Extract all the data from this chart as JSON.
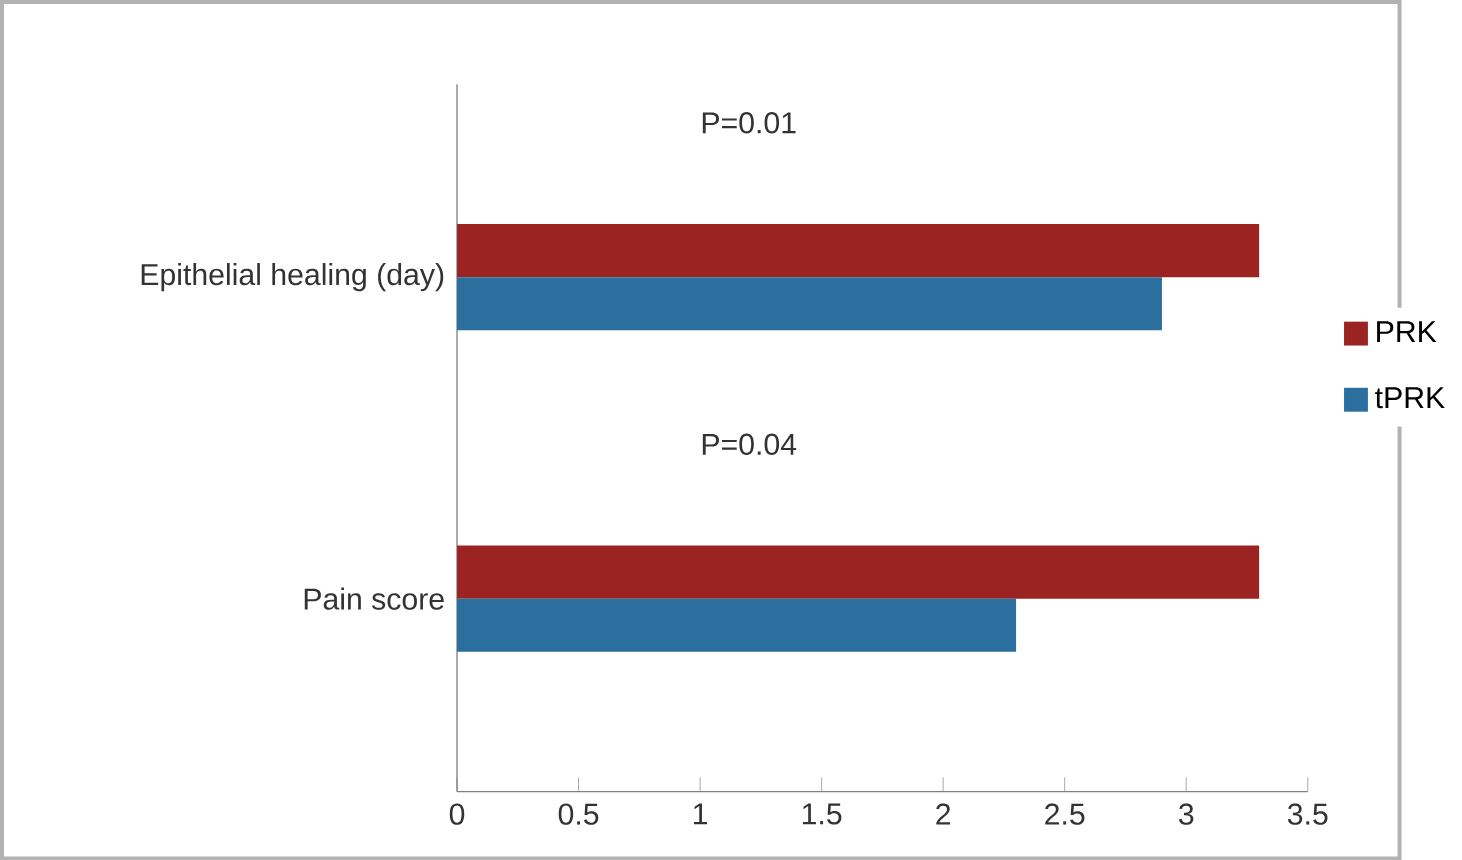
{
  "chart_data": {
    "type": "bar",
    "orientation": "horizontal",
    "categories": [
      "Epithelial healing   (day)",
      "Pain score"
    ],
    "series": [
      {
        "name": "PRK",
        "color": "#9b2423",
        "values": [
          3.3,
          3.3
        ]
      },
      {
        "name": "tPRK",
        "color": "#2a6f9e",
        "values": [
          2.9,
          2.3
        ]
      }
    ],
    "xlim": [
      0,
      3.5
    ],
    "xticks": [
      0,
      0.5,
      1,
      1.5,
      2,
      2.5,
      3,
      3.5
    ],
    "annotations": [
      "P=0.01",
      "P=0.04"
    ],
    "legend": "right",
    "grid": false
  }
}
